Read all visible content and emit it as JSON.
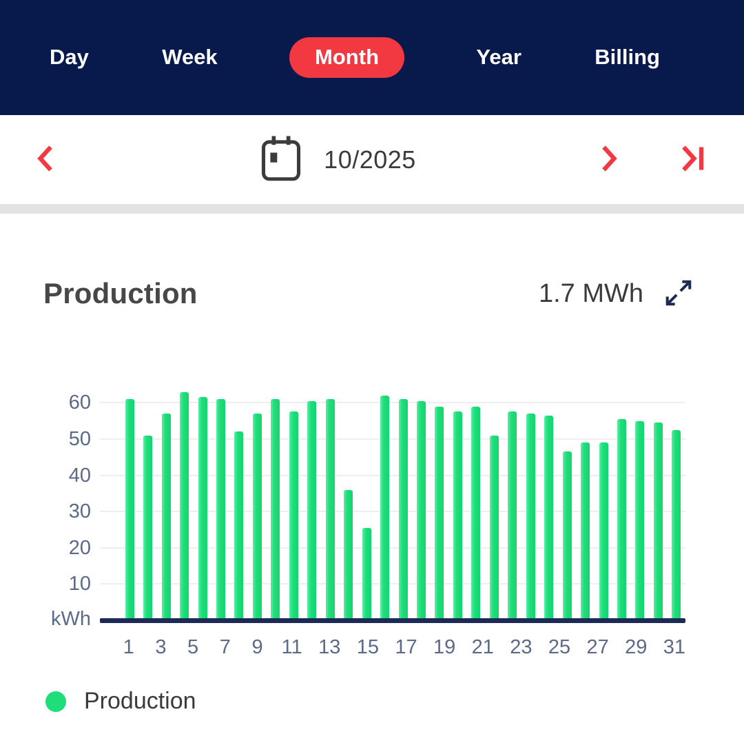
{
  "colors": {
    "header_bg": "#081A4B",
    "accent_red": "#F23840",
    "bar_green": "#1FDE7A",
    "axis_text": "#5C6A87",
    "baseline_navy": "#1E2A56",
    "divider_gray": "#E3E3E6"
  },
  "tabs": {
    "items": [
      {
        "label": "Day",
        "active": false
      },
      {
        "label": "Week",
        "active": false
      },
      {
        "label": "Month",
        "active": true
      },
      {
        "label": "Year",
        "active": false
      },
      {
        "label": "Billing",
        "active": false
      }
    ]
  },
  "date_nav": {
    "value": "10/2025"
  },
  "production": {
    "title": "Production",
    "total_value": "1.7 MWh"
  },
  "chart_data": {
    "type": "bar",
    "title": "Production",
    "unit": "kWh",
    "ylabel": "kWh",
    "xlabel": "",
    "ylim": [
      0,
      65
    ],
    "yticks": [
      10,
      20,
      30,
      40,
      50,
      60
    ],
    "grid": true,
    "categories": [
      1,
      2,
      3,
      4,
      5,
      6,
      7,
      8,
      9,
      10,
      11,
      12,
      13,
      14,
      15,
      16,
      17,
      18,
      19,
      20,
      21,
      22,
      23,
      24,
      25,
      26,
      27,
      28,
      29,
      30,
      31
    ],
    "x_ticks": [
      1,
      3,
      5,
      7,
      9,
      11,
      13,
      15,
      17,
      19,
      21,
      23,
      25,
      27,
      29,
      31
    ],
    "series": [
      {
        "name": "Production",
        "color": "#1FDE7A",
        "values": [
          61,
          51,
          57,
          63,
          61.5,
          61,
          52,
          57,
          61,
          57.5,
          60.5,
          61,
          36,
          25.5,
          62,
          61,
          60.5,
          59,
          57.5,
          59,
          51,
          57.5,
          57,
          56.5,
          46.5,
          49,
          49,
          55.5,
          55,
          54.5,
          52.5
        ]
      }
    ],
    "legend_position": "bottom"
  },
  "legend": {
    "label": "Production"
  }
}
